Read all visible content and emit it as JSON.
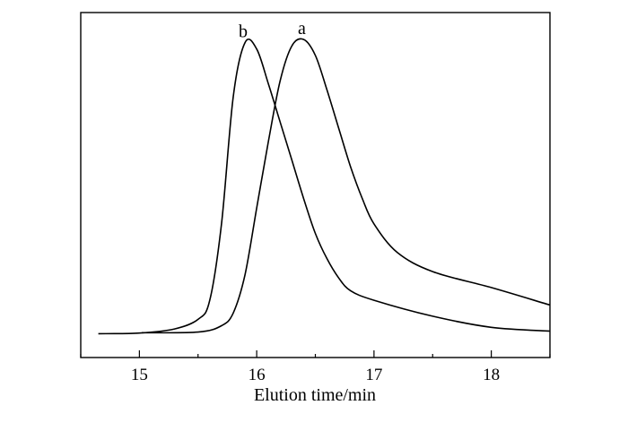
{
  "chart_data": {
    "type": "line",
    "title": "",
    "xlabel": "Elution time/min",
    "ylabel": "",
    "xlim": [
      14.5,
      18.5
    ],
    "ylim": [
      0,
      1.0
    ],
    "xticks": [
      15,
      16,
      17,
      18
    ],
    "xtick_labels": [
      "15",
      "16",
      "17",
      "18"
    ],
    "grid": false,
    "series": [
      {
        "name": "a",
        "x": [
          15.02,
          15.5,
          15.7,
          15.8,
          15.9,
          16.0,
          16.1,
          16.2,
          16.3,
          16.4,
          16.5,
          16.6,
          16.7,
          16.8,
          16.9,
          17.0,
          17.2,
          17.5,
          18.0,
          18.5
        ],
        "y": [
          0.078,
          0.08,
          0.1,
          0.14,
          0.26,
          0.47,
          0.68,
          0.87,
          0.98,
          1.0,
          0.95,
          0.84,
          0.72,
          0.6,
          0.5,
          0.42,
          0.33,
          0.27,
          0.22,
          0.165
        ]
      },
      {
        "name": "b",
        "x": [
          14.65,
          15.0,
          15.3,
          15.5,
          15.6,
          15.7,
          15.8,
          15.9,
          16.0,
          16.1,
          16.2,
          16.3,
          16.4,
          16.5,
          16.6,
          16.7,
          16.8,
          17.0,
          17.5,
          18.0,
          18.5
        ],
        "y": [
          0.075,
          0.077,
          0.09,
          0.12,
          0.18,
          0.42,
          0.82,
          0.99,
          0.97,
          0.86,
          0.74,
          0.62,
          0.5,
          0.39,
          0.31,
          0.25,
          0.21,
          0.18,
          0.13,
          0.095,
          0.083
        ]
      }
    ]
  }
}
